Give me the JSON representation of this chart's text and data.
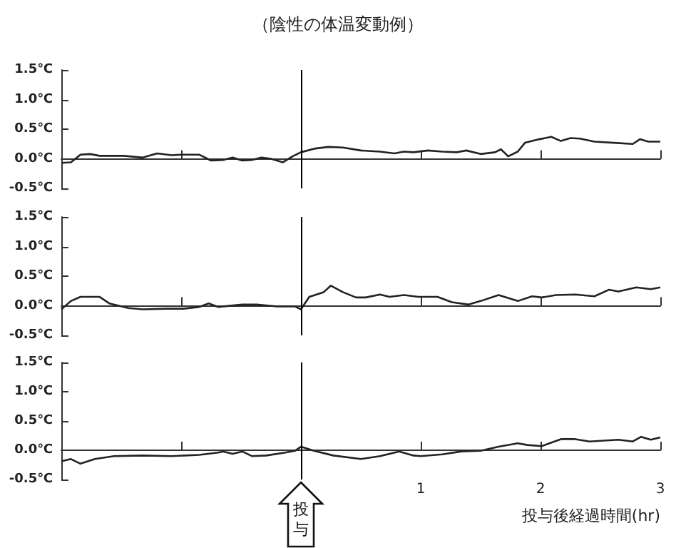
{
  "chart_data": [
    {
      "type": "line",
      "title": "（陰性の体温変動例）",
      "xlim": [
        -2,
        3
      ],
      "xticks": [
        {
          "value": -1,
          "label": null
        },
        {
          "value": 1,
          "label": null
        },
        {
          "value": 2,
          "label": null
        },
        {
          "value": 3,
          "label": null
        }
      ],
      "ylim": [
        -0.5,
        1.5
      ],
      "yticks": [
        {
          "value": -0.5,
          "label": "-0.5℃"
        },
        {
          "value": 0,
          "label": "0.0℃"
        },
        {
          "value": 0.5,
          "label": "0.5℃"
        },
        {
          "value": 1,
          "label": "1.0℃"
        },
        {
          "value": 1.5,
          "label": "1.5℃"
        }
      ],
      "tick_labels": "y",
      "ref_lines": [
        {
          "axis": "x",
          "value": 0,
          "color": "#000000"
        }
      ],
      "series": [
        {
          "color": "#222222",
          "x": [
            -2.0,
            -1.92,
            -1.84,
            -1.76,
            -1.68,
            -1.48,
            -1.32,
            -1.2,
            -1.08,
            -1.0,
            -0.85,
            -0.75,
            -0.65,
            -0.57,
            -0.49,
            -0.41,
            -0.33,
            -0.25,
            -0.15,
            -0.07,
            0.0,
            0.11,
            0.23,
            0.35,
            0.5,
            0.66,
            0.78,
            0.86,
            0.94,
            1.06,
            1.18,
            1.3,
            1.38,
            1.5,
            1.62,
            1.67,
            1.73,
            1.81,
            1.87,
            1.99,
            2.09,
            2.17,
            2.25,
            2.33,
            2.45,
            2.61,
            2.77,
            2.83,
            2.9,
            3.0
          ],
          "values": [
            -0.07,
            -0.06,
            0.07,
            0.08,
            0.05,
            0.05,
            0.02,
            0.09,
            0.06,
            0.07,
            0.07,
            -0.03,
            -0.02,
            0.02,
            -0.03,
            -0.02,
            0.02,
            0,
            -0.06,
            0.04,
            0.11,
            0.17,
            0.2,
            0.19,
            0.14,
            0.12,
            0.09,
            0.12,
            0.11,
            0.14,
            0.12,
            0.11,
            0.14,
            0.08,
            0.11,
            0.16,
            0.04,
            0.12,
            0.27,
            0.33,
            0.37,
            0.3,
            0.35,
            0.34,
            0.29,
            0.27,
            0.25,
            0.33,
            0.29,
            0.29
          ]
        }
      ]
    },
    {
      "type": "line",
      "xlim": [
        -2,
        3
      ],
      "xticks": [
        {
          "value": -1,
          "label": null
        },
        {
          "value": 1,
          "label": null
        },
        {
          "value": 2,
          "label": null
        },
        {
          "value": 3,
          "label": null
        }
      ],
      "ylim": [
        -0.5,
        1.5
      ],
      "yticks": [
        {
          "value": -0.5,
          "label": "-0.5℃"
        },
        {
          "value": 0,
          "label": "0.0℃"
        },
        {
          "value": 0.5,
          "label": "0.5℃"
        },
        {
          "value": 1,
          "label": "1.0℃"
        },
        {
          "value": 1.5,
          "label": "1.5℃"
        }
      ],
      "tick_labels": "y",
      "ref_lines": [
        {
          "axis": "x",
          "value": 0,
          "color": "#000000"
        }
      ],
      "series": [
        {
          "color": "#222222",
          "x": [
            -2.0,
            -1.92,
            -1.84,
            -1.68,
            -1.6,
            -1.44,
            -1.32,
            -1.12,
            -0.98,
            -0.85,
            -0.77,
            -0.69,
            -0.49,
            -0.37,
            -0.21,
            -0.05,
            0.0,
            0.07,
            0.19,
            0.25,
            0.35,
            0.46,
            0.54,
            0.66,
            0.74,
            0.86,
            0.98,
            1.14,
            1.26,
            1.4,
            1.5,
            1.65,
            1.81,
            1.93,
            2.01,
            2.13,
            2.29,
            2.45,
            2.57,
            2.65,
            2.8,
            2.92,
            3.0
          ],
          "values": [
            -0.06,
            0.08,
            0.15,
            0.15,
            0.04,
            -0.04,
            -0.06,
            -0.05,
            -0.05,
            -0.02,
            0.04,
            -0.02,
            0.02,
            0.02,
            -0.01,
            -0.01,
            -0.06,
            0.15,
            0.23,
            0.34,
            0.23,
            0.14,
            0.14,
            0.19,
            0.15,
            0.18,
            0.15,
            0.15,
            0.06,
            0.02,
            0.08,
            0.18,
            0.08,
            0.16,
            0.14,
            0.18,
            0.19,
            0.16,
            0.27,
            0.24,
            0.31,
            0.28,
            0.31
          ]
        }
      ]
    },
    {
      "type": "line",
      "xlabel": "投与後経過時間(hr)",
      "xlim": [
        -2,
        3
      ],
      "xticks": [
        {
          "value": -1,
          "label": null
        },
        1,
        2,
        3
      ],
      "ylim": [
        -0.5,
        1.5
      ],
      "yticks": [
        {
          "value": -0.5,
          "label": "-0.5℃"
        },
        {
          "value": 0,
          "label": "0.0℃"
        },
        {
          "value": 0.5,
          "label": "0.5℃"
        },
        {
          "value": 1,
          "label": "1.0℃"
        },
        {
          "value": 1.5,
          "label": "1.5℃"
        }
      ],
      "ref_lines": [
        {
          "axis": "x",
          "value": 0,
          "label": "投与",
          "color": "#000000"
        }
      ],
      "series": [
        {
          "color": "#222222",
          "x": [
            -2.0,
            -1.92,
            -1.84,
            -1.72,
            -1.56,
            -1.32,
            -1.08,
            -0.85,
            -0.69,
            -0.65,
            -0.57,
            -0.49,
            -0.41,
            -0.29,
            -0.13,
            -0.05,
            0.0,
            0.11,
            0.27,
            0.5,
            0.66,
            0.82,
            0.94,
            1.0,
            1.18,
            1.34,
            1.5,
            1.65,
            1.81,
            1.89,
            2.01,
            2.17,
            2.29,
            2.41,
            2.65,
            2.77,
            2.84,
            2.92,
            3.0
          ],
          "values": [
            -0.19,
            -0.15,
            -0.23,
            -0.15,
            -0.1,
            -0.09,
            -0.1,
            -0.08,
            -0.04,
            -0.02,
            -0.06,
            -0.02,
            -0.1,
            -0.09,
            -0.04,
            -0.01,
            0.06,
            -0.01,
            -0.09,
            -0.15,
            -0.1,
            -0.02,
            -0.09,
            -0.1,
            -0.07,
            -0.02,
            -0.01,
            0.06,
            0.12,
            0.09,
            0.07,
            0.19,
            0.19,
            0.15,
            0.18,
            0.15,
            0.23,
            0.18,
            0.22
          ]
        }
      ]
    }
  ]
}
